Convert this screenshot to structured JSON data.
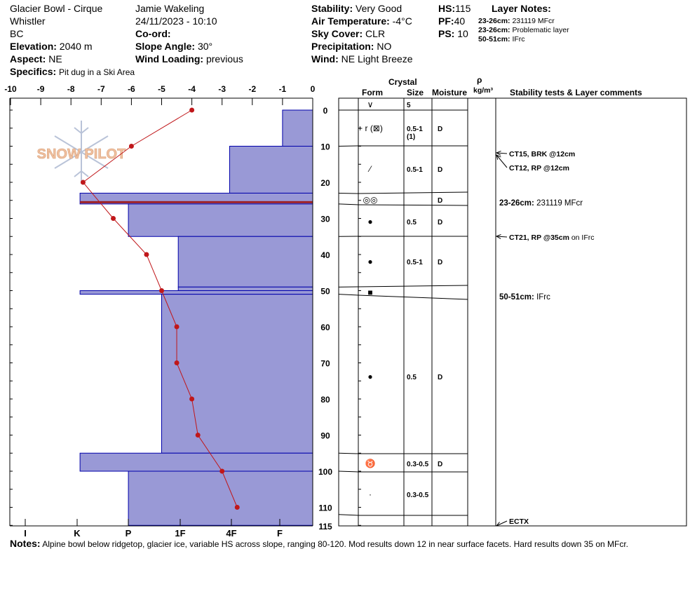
{
  "header": {
    "location": "Glacier Bowl - Cirque",
    "region": "Whistler",
    "province": "BC",
    "elevation_label": "Elevation:",
    "elevation": "2040 m",
    "aspect_label": "Aspect:",
    "aspect": "NE",
    "specifics_label": "Specifics:",
    "specifics": "Pit dug in a Ski Area",
    "observer": "Jamie  Wakeling",
    "datetime": "24/11/2023 - 10:10",
    "coord_label": "Co-ord:",
    "slope_label": "Slope Angle:",
    "slope": "30°",
    "wind_loading_label": "Wind Loading:",
    "wind_loading": "previous",
    "stability_label": "Stability:",
    "stability": "Very Good",
    "air_temp_label": "Air Temperature:",
    "air_temp": "-4°C",
    "sky_label": "Sky Cover:",
    "sky": "CLR",
    "precip_label": "Precipitation:",
    "precip": "NO",
    "wind_label": "Wind:",
    "wind": "NE Light Breeze",
    "hs_label": "HS:",
    "hs": "115",
    "pf_label": "PF:",
    "pf": "40",
    "ps_label": "PS:",
    "ps": "10",
    "layer_notes_title": "Layer Notes:",
    "layer_notes": [
      {
        "range": "23-26cm:",
        "text": "231119 MFcr"
      },
      {
        "range": "23-26cm:",
        "text": "Problematic layer"
      },
      {
        "range": "50-51cm:",
        "text": "IFrc"
      }
    ]
  },
  "columns": {
    "crystal": "Crystal",
    "form": "Form",
    "size": "Size",
    "moisture": "Moisture",
    "rho": "ρ",
    "density_unit": "kg/m³",
    "comments": "Stability tests & Layer comments"
  },
  "logo_text": "SNOW PILOT",
  "notes_label": "Notes:",
  "notes": "Alpine bowl below ridgetop, glacier ice, variable HS across slope, ranging 80-120. Mod results down 12 in near surface facets. Hard results down 35 on MFcr.",
  "colors": {
    "hardness_fill": "#9999d6",
    "hardness_stroke": "#0000aa",
    "temp_line": "#c0171a",
    "problem_layer": "#9c1f25"
  },
  "chart_data": {
    "type": "area",
    "depth_axis": {
      "ticks": [
        "0",
        "10",
        "20",
        "30",
        "40",
        "50",
        "60",
        "70",
        "80",
        "90",
        "100",
        "110",
        "115"
      ],
      "min": 0,
      "max": 115
    },
    "temp_axis": {
      "ticks": [
        "-10",
        "-9",
        "-8",
        "-7",
        "-6",
        "-5",
        "-4",
        "-3",
        "-2",
        "-1",
        "0"
      ],
      "min": -10,
      "max": 0
    },
    "hardness_axis": {
      "ticks": [
        "I",
        "K",
        "P",
        "1F",
        "4F",
        "F"
      ],
      "scale": [
        "I",
        "K",
        "P",
        "1F",
        "4F",
        "F"
      ]
    },
    "hardness_layers": [
      {
        "top": 0,
        "bottom": 10,
        "hardness": 1.0
      },
      {
        "top": 10,
        "bottom": 23,
        "hardness": 2.75
      },
      {
        "top": 23,
        "bottom": 26,
        "hardness": 7.7
      },
      {
        "top": 26,
        "bottom": 35,
        "hardness": 6.1
      },
      {
        "top": 35,
        "bottom": 49,
        "hardness": 4.45
      },
      {
        "top": 49,
        "bottom": 50,
        "hardness": 4.45
      },
      {
        "top": 50,
        "bottom": 51,
        "hardness": 7.7
      },
      {
        "top": 51,
        "bottom": 95,
        "hardness": 5.0
      },
      {
        "top": 95,
        "bottom": 100,
        "hardness": 7.7
      },
      {
        "top": 100,
        "bottom": 115,
        "hardness": 6.1
      }
    ],
    "problem_layer_depth": 25.5,
    "temperature_profile": [
      {
        "depth": 0,
        "temp": -4.0
      },
      {
        "depth": 10,
        "temp": -6.0
      },
      {
        "depth": 20,
        "temp": -7.6
      },
      {
        "depth": 30,
        "temp": -6.6
      },
      {
        "depth": 40,
        "temp": -5.5
      },
      {
        "depth": 50,
        "temp": -5.0
      },
      {
        "depth": 60,
        "temp": -4.5
      },
      {
        "depth": 70,
        "temp": -4.5
      },
      {
        "depth": 80,
        "temp": -4.0
      },
      {
        "depth": 90,
        "temp": -3.8
      },
      {
        "depth": 100,
        "temp": -3.0
      },
      {
        "depth": 110,
        "temp": -2.5
      }
    ]
  },
  "layers_table": [
    {
      "top": 0,
      "bottom": 0,
      "form": "∨",
      "size": "5",
      "moisture": ""
    },
    {
      "top": 0,
      "bottom": 10,
      "form": "+ r (⊠)",
      "size": "0.5-1\n(1)",
      "moisture": "D"
    },
    {
      "top": 10,
      "bottom": 23,
      "form": "⁄",
      "size": "0.5-1",
      "moisture": "D"
    },
    {
      "top": 23,
      "bottom": 26,
      "form": "◎◎",
      "size": "",
      "moisture": "D"
    },
    {
      "top": 26,
      "bottom": 35,
      "form": "●",
      "size": "0.5",
      "moisture": "D"
    },
    {
      "top": 35,
      "bottom": 49,
      "form": "●",
      "size": "0.5-1",
      "moisture": "D"
    },
    {
      "top": 49,
      "bottom": 51,
      "form": "■",
      "size": "",
      "moisture": ""
    },
    {
      "top": 51,
      "bottom": 95,
      "form": "●",
      "size": "0.5",
      "moisture": "D"
    },
    {
      "top": 95,
      "bottom": 100,
      "form": "♉",
      "size": "0.3-0.5",
      "moisture": "D"
    },
    {
      "top": 100,
      "bottom": 112,
      "form": "·",
      "size": "0.3-0.5",
      "moisture": ""
    }
  ],
  "tests": [
    {
      "depth": 12,
      "text": "CT15, BRK @12cm",
      "suffix": ""
    },
    {
      "depth": 12,
      "text": "CT12, RP @12cm",
      "suffix": ""
    },
    {
      "depth": 35,
      "text": "CT21, RP @35cm",
      "suffix": " on IFrc"
    },
    {
      "depth": 115,
      "text": "ECTX",
      "suffix": ""
    }
  ],
  "layer_comments": [
    {
      "range": "23-26cm:",
      "text": "231119 MFcr"
    },
    {
      "range": "50-51cm:",
      "text": "IFrc"
    }
  ]
}
